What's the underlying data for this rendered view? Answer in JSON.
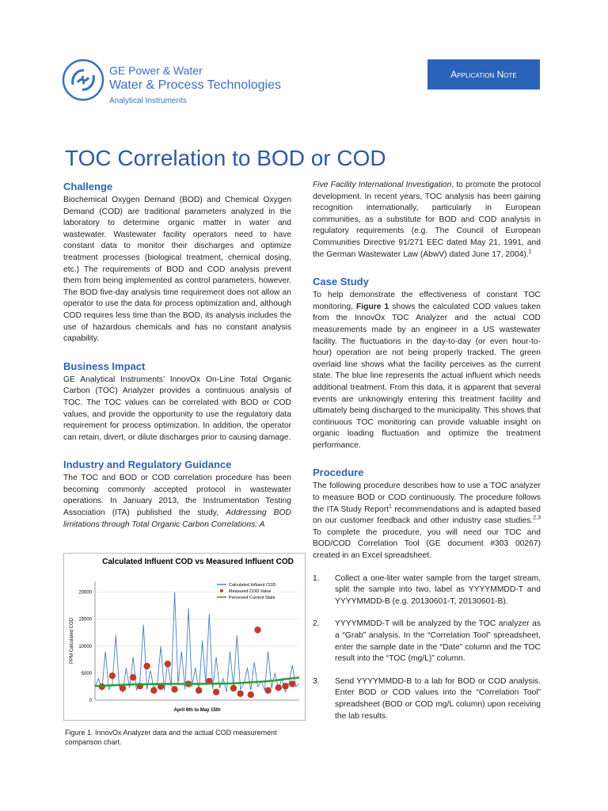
{
  "header": {
    "company": "GE Power & Water",
    "division": "Water & Process Technologies",
    "unit": "Analytical Instruments",
    "badge": "Application Note"
  },
  "title": "TOC Correlation to BOD or COD",
  "challenge": {
    "heading": "Challenge",
    "text": "Biochemical Oxygen Demand (BOD) and Chemical Oxygen Demand (COD) are traditional parameters analyzed in the laboratory to determine organic matter in water and wastewater. Wastewater facility operators need to have constant data to monitor their discharges and optimize treatment processes (biological treatment, chemical dosing, etc.) The requirements of BOD and COD analysis prevent them from being implemented as control parameters, however. The BOD five-day analysis time requirement does not allow an operator to use the data for process optimization and, although COD requires less time than the BOD, its analysis includes the use of hazardous chemicals and has no constant analysis capability."
  },
  "business": {
    "heading": "Business Impact",
    "text": "GE Analytical Instruments’ InnovOx On-Line Total Organic Carbon (TOC) Analyzer provides a continuous analysis of TOC. The TOC values can be correlated with BOD or COD values, and provide the opportunity to use the regulatory data requirement for process optimization. In addition, the operator can retain, divert, or dilute discharges prior to causing damage."
  },
  "industry": {
    "heading": "Industry and Regulatory Guidance",
    "text": [
      "The TOC and BOD or COD correlation procedure has been becoming commonly accepted protocol in wastewater operations. In January 2013, the Instrumentation Testing Association (ITA) published the study, ",
      "Addressing BOD limitations through Total Organic Carbon Correlations: A"
    ]
  },
  "continued": [
    "Five Facility International Investigation",
    ", to promote the protocol development. In recent years, TOC analysis has been gaining recognition internationally, particularly in European communities, as a substitute for BOD and COD analysis in regulatory requirements (e.g. The Council of European Communities Directive 91/271 EEC dated May 21, 1991, and the German Wastewater Law (AbwV) dated June 17, 2004).",
    "1"
  ],
  "case_study": {
    "heading": "Case Study",
    "text": [
      "To help demonstrate the effectiveness of constant TOC monitoring, ",
      "Figure 1",
      " shows the calculated COD values taken from the InnovOx TOC Analyzer and the actual COD measurements made by an engineer in a US wastewater facility. The fluctuations in the day-to-day (or even hour-to-hour) operation are not being properly tracked. The green overlaid line shows what the facility perceives as the current state. The blue line represents the actual influent which needs additional treatment. From this data, it is apparent that several events are unknowingly entering this treatment facility and ultimately being discharged to the municipality. This shows that continuous TOC monitoring can provide valuable insight on organic loading fluctuation and optimize the treatment performance."
    ]
  },
  "procedure": {
    "heading": "Procedure",
    "text": [
      "The following procedure describes how to use a TOC analyzer to measure BOD or COD continuously. The procedure follows the ITA Study Report",
      "1",
      " recommendations and is adapted based on our customer feedback and other industry case studies.",
      "2,3",
      " To complete the procedure, you will need our TOC and BOD/COD Correlation Tool (GE document #303 00267) created in an Excel spreadsheet."
    ],
    "steps": [
      {
        "num": "1.",
        "text": "Collect a one-liter water sample from the target stream, split the sample into two, label as YYYYMMDD-T and YYYYMMDD-B (e.g. 20130601-T, 20130601-B)."
      },
      {
        "num": "2.",
        "text": "YYYYMMDD-T will be analyzed by the TOC analyzer as a “Grab” analysis. In the “Correlation Tool” spreadsheet, enter the sample date in the “Date” column and the TOC result into the “TOC (mg/L)” column."
      },
      {
        "num": "3.",
        "text": "Send YYYYMMDD-B to a lab for BOD or COD analysis. Enter BOD or COD values into the “Correlation Tool” spreadsheet (BOD or COD mg/L column) upon receiving the lab results."
      }
    ]
  },
  "figure": {
    "caption": "Figure 1. InnovOx Analyzer data and the actual COD measurement comparison chart.",
    "chart": {
      "type": "line",
      "title": "Calculated Influent COD vs Measured Influent COD",
      "ylabel": "PPM Calculated COD",
      "xlabel": "April 6th to May 15th",
      "ylim": [
        0,
        22000
      ],
      "yticks": [
        0,
        5000,
        10000,
        15000,
        20000
      ],
      "xlim": [
        0,
        59
      ],
      "grid": true,
      "series": [
        {
          "name": "Calculated Influent COD",
          "color": "#4a7fc1",
          "values": [
            2500,
            4000,
            1800,
            9000,
            2000,
            3000,
            12000,
            2500,
            1500,
            6000,
            2200,
            8000,
            1800,
            3500,
            14000,
            2000,
            5500,
            2200,
            3000,
            10000,
            1800,
            7000,
            2500,
            20000,
            3000,
            9000,
            2000,
            17000,
            2500,
            6000,
            1500,
            11000,
            3000,
            16000,
            2000,
            8000,
            2200,
            4000,
            1500,
            9000,
            2500,
            12000,
            2000,
            3000,
            6000,
            1800,
            7000,
            2500,
            3500,
            1800,
            9000,
            2200,
            5000,
            2000,
            4000,
            1500,
            3000,
            6500,
            2500,
            3000
          ]
        },
        {
          "name": "Measured COD Value",
          "color": "#c0392b",
          "x": [
            2,
            5,
            8,
            11,
            13,
            15,
            17,
            19,
            21,
            23,
            27,
            30,
            33,
            35,
            40,
            42,
            45,
            47,
            50,
            53,
            55,
            57
          ],
          "values": [
            2500,
            4500,
            2200,
            4200,
            2600,
            6300,
            1800,
            2500,
            6700,
            2000,
            3000,
            1800,
            3500,
            1500,
            2200,
            1200,
            1000,
            13000,
            1800,
            2300,
            2600,
            3000
          ]
        },
        {
          "name": "Perceived Current State",
          "color": "#2ca02c",
          "x": [
            0,
            10,
            20,
            30,
            40,
            50,
            59
          ],
          "values": [
            2600,
            2900,
            3000,
            3000,
            3100,
            3500,
            4200
          ]
        }
      ]
    }
  }
}
